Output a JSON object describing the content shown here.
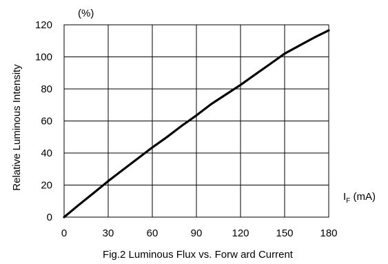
{
  "chart_data": {
    "type": "line",
    "title": "Fig.2 Luminous Flux vs. Forw ard Current",
    "unit_y": "(%)",
    "ylabel": "Relative Luminous Intensity",
    "xlabel_main": "I",
    "xlabel_sub": "F",
    "xlabel_unit": " (mA)",
    "xlim": [
      0,
      180
    ],
    "ylim": [
      0,
      120
    ],
    "xticks": [
      0,
      30,
      60,
      90,
      120,
      150,
      180
    ],
    "yticks": [
      0,
      20,
      40,
      60,
      80,
      100,
      120
    ],
    "grid": true,
    "legend": "none",
    "line_color": "#000000",
    "series": [
      {
        "x": [
          0,
          10,
          20,
          30,
          40,
          50,
          60,
          70,
          80,
          90,
          100,
          110,
          120,
          130,
          140,
          150,
          160,
          170,
          180
        ],
        "values": [
          0,
          7.6,
          15,
          22.5,
          29.5,
          36.5,
          43.5,
          50,
          57,
          63.5,
          70.5,
          76.5,
          82.5,
          89,
          95.5,
          102,
          107,
          112,
          116.5
        ]
      }
    ]
  }
}
